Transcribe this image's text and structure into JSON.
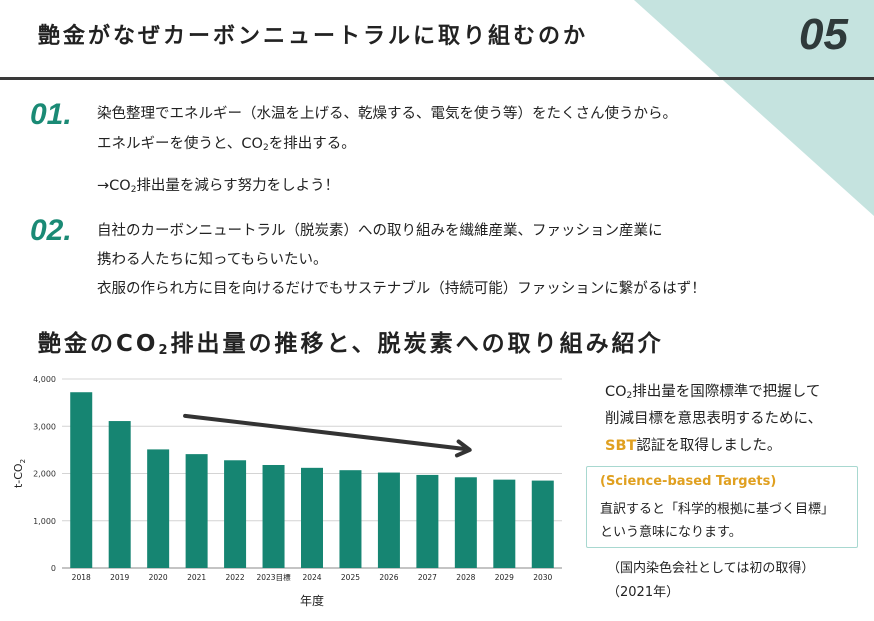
{
  "header": {
    "title": "艶金がなぜカーボンニュートラルに取り組むのか",
    "page_number": "05"
  },
  "points": [
    {
      "num": "01.",
      "line1": "染色整理でエネルギー（水温を上げる、乾燥する、電気を使う等）をたくさん使うから。",
      "line2_pre": "エネルギーを使うと、CO",
      "line2_sub": "2",
      "line2_post": "を排出する。",
      "line3_pre": "→CO",
      "line3_sub": "2",
      "line3_post": "排出量を減らす努力をしよう！"
    },
    {
      "num": "02.",
      "line1": "自社のカーボンニュートラル（脱炭素）への取り組みを繊維産業、ファッション産業に",
      "line2": "携わる人たちに知ってもらいたい。",
      "line3": "衣服の作られ方に目を向けるだけでもサステナブル（持続可能）ファッションに繋がるはず！"
    }
  ],
  "section": {
    "title_pre": "艶金のCO",
    "title_sub": "2",
    "title_post": "排出量の推移と、脱炭素への取り組み紹介"
  },
  "chart_data": {
    "type": "bar",
    "categories": [
      "2018",
      "2019",
      "2020",
      "2021",
      "2022",
      "2023目標",
      "2024",
      "2025",
      "2026",
      "2027",
      "2028",
      "2029",
      "2030"
    ],
    "values": [
      3720,
      3110,
      2510,
      2410,
      2280,
      2180,
      2120,
      2070,
      2020,
      1970,
      1920,
      1870,
      1850
    ],
    "ylabel_pre": "t-CO",
    "ylabel_sub": "2",
    "xlabel": "年度",
    "ylim": [
      0,
      4000
    ],
    "yticks": [
      {
        "value": 0,
        "label": "0"
      },
      {
        "value": 1000,
        "label": "1,000"
      },
      {
        "value": 2000,
        "label": "2,000"
      },
      {
        "value": 3000,
        "label": "3,000"
      },
      {
        "value": 4000,
        "label": "4,000"
      }
    ],
    "grid": true,
    "bar_color": "#168572",
    "trend_arrow": true
  },
  "side": {
    "line1_pre": "CO",
    "line1_sub": "2",
    "line1_post": "排出量を国際標準で把握して",
    "line2": "削減目標を意思表明するために、",
    "line3_accent": "SBT",
    "line3_post": "認証を取得しました。",
    "box_title": "(Science-based Targets)",
    "box_line1": "直訳すると「科学的根拠に基づく目標」",
    "box_line2": "という意味になります。",
    "note_line1": "（国内染色会社としては初の取得）",
    "note_line2": "（2021年）"
  },
  "colors": {
    "accent_teal": "#1a8a75",
    "corner_teal": "#c5e3df",
    "sbt_orange": "#e0a020",
    "box_border": "#a8d8d0"
  }
}
